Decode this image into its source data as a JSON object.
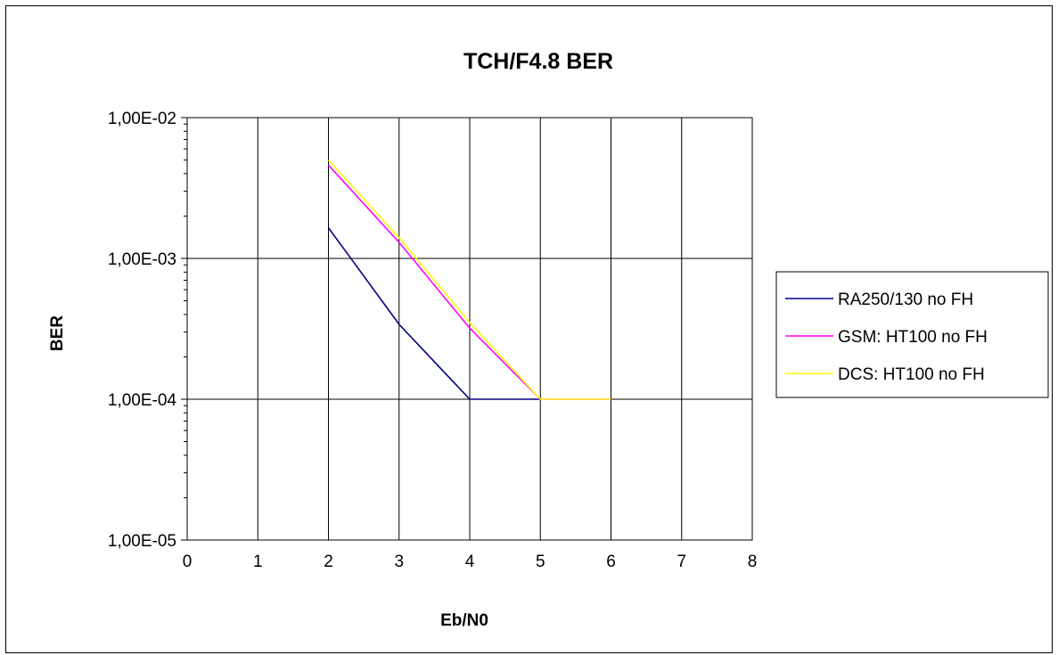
{
  "chart_data": {
    "type": "line",
    "title": "TCH/F4.8  BER",
    "xlabel": "Eb/N0",
    "ylabel": "BER",
    "x_scale": "linear",
    "y_scale": "log",
    "xlim": [
      0,
      8
    ],
    "ylim": [
      1e-05,
      0.01
    ],
    "x_ticks": [
      "0",
      "1",
      "2",
      "3",
      "4",
      "5",
      "6",
      "7",
      "8"
    ],
    "y_ticks": [
      {
        "value": 0.01,
        "label": "1,00E-02"
      },
      {
        "value": 0.001,
        "label": "1,00E-03"
      },
      {
        "value": 0.0001,
        "label": "1,00E-04"
      },
      {
        "value": 1e-05,
        "label": "1,00E-05"
      }
    ],
    "grid": true,
    "legend_position": "right",
    "series": [
      {
        "name": "RA250/130 no FH",
        "color": "#000080",
        "x": [
          2,
          3,
          4,
          5
        ],
        "y": [
          0.00165,
          0.00034,
          0.0001,
          0.0001
        ]
      },
      {
        "name": "GSM: HT100 no FH",
        "color": "#ff00ff",
        "x": [
          2,
          3,
          4,
          5,
          6
        ],
        "y": [
          0.0046,
          0.0013,
          0.00032,
          0.0001,
          0.0001
        ]
      },
      {
        "name": "DCS: HT100 no FH",
        "color": "#ffff00",
        "x": [
          2,
          3,
          4,
          5,
          6
        ],
        "y": [
          0.005,
          0.0014,
          0.00035,
          0.0001,
          0.0001
        ]
      }
    ]
  }
}
